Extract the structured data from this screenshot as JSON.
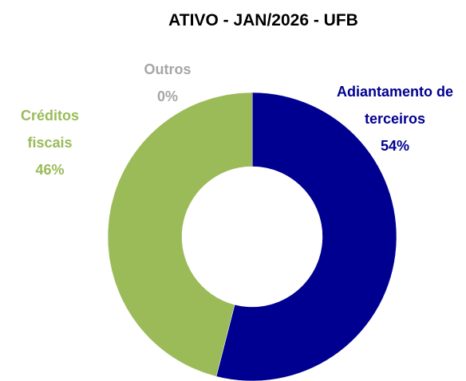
{
  "chart_data": {
    "type": "donut",
    "title": "ATIVO - JAN/2026 - UFB",
    "categories": [
      "Adiantamento de terceiros",
      "Créditos fiscais",
      "Outros"
    ],
    "values": [
      54,
      46,
      0
    ],
    "value_labels": [
      "54%",
      "46%",
      "0%"
    ],
    "colors": [
      "#000090",
      "#9BBB59",
      "#A6A6A6"
    ]
  }
}
